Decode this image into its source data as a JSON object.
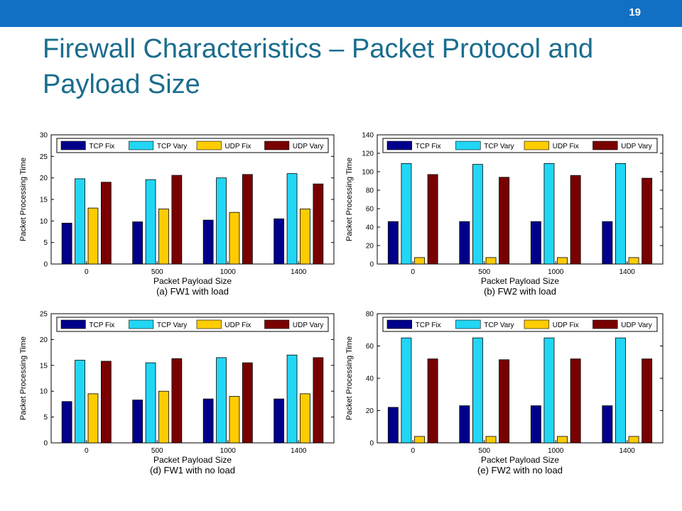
{
  "slide": {
    "number": "19",
    "title": "Firewall Characteristics – Packet Protocol and Payload Size"
  },
  "colors": {
    "bar": "#1270c4",
    "title": "#1a6d8e",
    "tcp_fix": "#00008b",
    "tcp_vary": "#22d6f5",
    "udp_fix": "#ffcc00",
    "udp_vary": "#7a0000"
  },
  "chart_data": [
    {
      "type": "bar",
      "title": "(a) FW1 with load",
      "xlabel": "Packet Payload Size",
      "ylabel": "Packet Processing Time",
      "categories": [
        "0",
        "500",
        "1000",
        "1400"
      ],
      "ylim": [
        0,
        30
      ],
      "yticks": [
        0,
        5,
        10,
        15,
        20,
        25,
        30
      ],
      "legend": "top",
      "series": [
        {
          "name": "TCP Fix",
          "values": [
            9.5,
            9.8,
            10.2,
            10.5
          ]
        },
        {
          "name": "TCP Vary",
          "values": [
            19.8,
            19.6,
            20.0,
            21.0
          ]
        },
        {
          "name": "UDP Fix",
          "values": [
            13.0,
            12.8,
            12.0,
            12.8
          ]
        },
        {
          "name": "UDP Vary",
          "values": [
            19.0,
            20.6,
            20.8,
            18.6
          ]
        }
      ]
    },
    {
      "type": "bar",
      "title": "(b) FW2 with load",
      "xlabel": "Packet Payload Size",
      "ylabel": "Packet Processing Time",
      "categories": [
        "0",
        "500",
        "1000",
        "1400"
      ],
      "ylim": [
        0,
        140
      ],
      "yticks": [
        0,
        20,
        40,
        60,
        80,
        100,
        120,
        140
      ],
      "legend": "top",
      "series": [
        {
          "name": "TCP Fix",
          "values": [
            46,
            46,
            46,
            46
          ]
        },
        {
          "name": "TCP Vary",
          "values": [
            109,
            108,
            109,
            109
          ]
        },
        {
          "name": "UDP Fix",
          "values": [
            7,
            7,
            7,
            7
          ]
        },
        {
          "name": "UDP Vary",
          "values": [
            97,
            94,
            96,
            93
          ]
        }
      ]
    },
    {
      "type": "bar",
      "title": "(d) FW1 with no load",
      "xlabel": "Packet Payload Size",
      "ylabel": "Packet Processing Time",
      "categories": [
        "0",
        "500",
        "1000",
        "1400"
      ],
      "ylim": [
        0,
        25
      ],
      "yticks": [
        0,
        5,
        10,
        15,
        20,
        25
      ],
      "legend": "top",
      "series": [
        {
          "name": "TCP Fix",
          "values": [
            8.0,
            8.3,
            8.5,
            8.5
          ]
        },
        {
          "name": "TCP Vary",
          "values": [
            16.0,
            15.5,
            16.5,
            17.0
          ]
        },
        {
          "name": "UDP Fix",
          "values": [
            9.5,
            10.0,
            9.0,
            9.5
          ]
        },
        {
          "name": "UDP Vary",
          "values": [
            15.8,
            16.3,
            15.5,
            16.5
          ]
        }
      ]
    },
    {
      "type": "bar",
      "title": "(e) FW2 with no load",
      "xlabel": "Packet Payload Size",
      "ylabel": "Packet Processing Time",
      "categories": [
        "0",
        "500",
        "1000",
        "1400"
      ],
      "ylim": [
        0,
        80
      ],
      "yticks": [
        0,
        20,
        40,
        60,
        80
      ],
      "legend": "top",
      "series": [
        {
          "name": "TCP Fix",
          "values": [
            22,
            23,
            23,
            23
          ]
        },
        {
          "name": "TCP Vary",
          "values": [
            65,
            65,
            65,
            65
          ]
        },
        {
          "name": "UDP Fix",
          "values": [
            4,
            4,
            4,
            4
          ]
        },
        {
          "name": "UDP Vary",
          "values": [
            52,
            51.5,
            52,
            52
          ]
        }
      ]
    }
  ]
}
